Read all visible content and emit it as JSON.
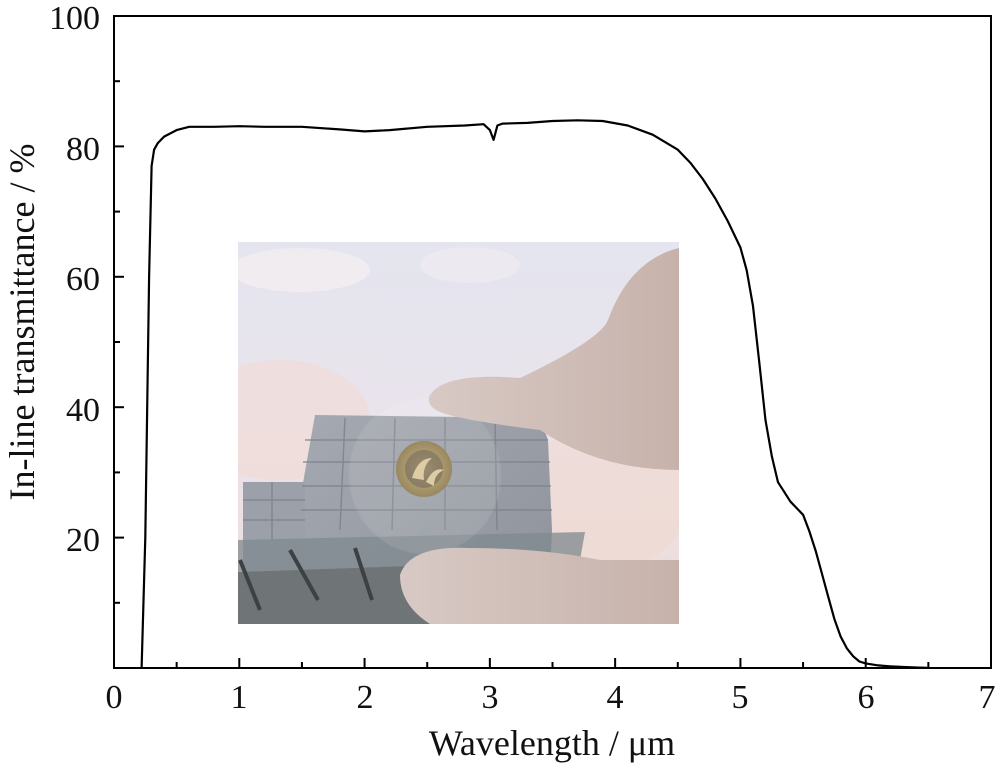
{
  "chart_data": {
    "type": "line",
    "xlabel": "Wavelength / μm",
    "ylabel": "In-line transmittance / %",
    "xlim": [
      0,
      7
    ],
    "ylim": [
      0,
      100
    ],
    "x_ticks": [
      "0",
      "1",
      "2",
      "3",
      "4",
      "5",
      "6",
      "7"
    ],
    "y_ticks": [
      "20",
      "40",
      "60",
      "80",
      "100"
    ],
    "grid": false,
    "legend": "none",
    "series": [
      {
        "color": "#000000",
        "x": [
          0.22,
          0.25,
          0.28,
          0.3,
          0.32,
          0.35,
          0.4,
          0.5,
          0.6,
          0.8,
          1.0,
          1.2,
          1.5,
          1.8,
          2.0,
          2.2,
          2.5,
          2.8,
          2.95,
          3.0,
          3.03,
          3.06,
          3.1,
          3.3,
          3.5,
          3.7,
          3.9,
          4.1,
          4.3,
          4.5,
          4.6,
          4.7,
          4.8,
          4.9,
          5.0,
          5.05,
          5.1,
          5.15,
          5.2,
          5.25,
          5.3,
          5.4,
          5.5,
          5.55,
          5.6,
          5.65,
          5.7,
          5.75,
          5.8,
          5.85,
          5.9,
          5.95,
          6.0,
          6.1,
          6.2,
          6.3,
          6.4,
          6.5
        ],
        "y": [
          0.0,
          20,
          60,
          77,
          79.5,
          80.5,
          81.5,
          82.5,
          83,
          83,
          83.1,
          83,
          83,
          82.6,
          82.3,
          82.5,
          83,
          83.2,
          83.4,
          82.5,
          81.0,
          83.2,
          83.5,
          83.6,
          83.9,
          84,
          83.9,
          83.2,
          81.8,
          79.5,
          77.5,
          75,
          72,
          68.5,
          64.5,
          61,
          55.5,
          47,
          38,
          32.5,
          28.5,
          25.5,
          23.5,
          21,
          18,
          14.5,
          11,
          7.5,
          4.8,
          3,
          1.8,
          1.0,
          0.7,
          0.4,
          0.25,
          0.15,
          0.07,
          0.03
        ]
      }
    ],
    "annotations": []
  },
  "colors": {
    "axis": "#000000",
    "line": "#000000"
  }
}
